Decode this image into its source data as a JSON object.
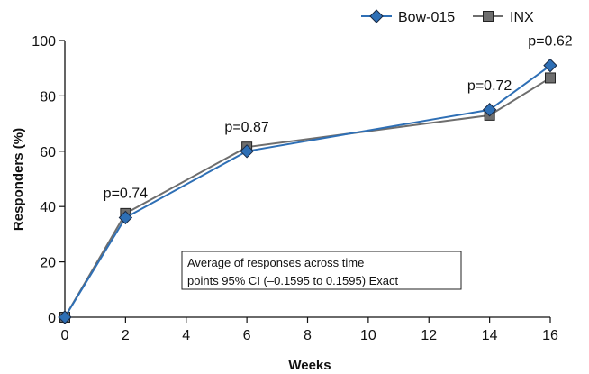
{
  "chart_data": {
    "type": "line",
    "xlabel": "Weeks",
    "ylabel": "Responders (%)",
    "xlim": [
      0,
      16
    ],
    "ylim": [
      0,
      100
    ],
    "xticks": [
      0,
      2,
      4,
      6,
      8,
      10,
      12,
      14,
      16
    ],
    "yticks": [
      0,
      20,
      40,
      60,
      80,
      100
    ],
    "grid": false,
    "legend_position": "top-right",
    "series": [
      {
        "name": "Bow-015",
        "color": "#2e6fb5",
        "marker": "diamond",
        "x": [
          0,
          2,
          6,
          14,
          16
        ],
        "y": [
          0,
          36,
          60,
          75,
          91
        ]
      },
      {
        "name": "INX",
        "color": "#6e6e6e",
        "marker": "square",
        "x": [
          0,
          2,
          6,
          14,
          16
        ],
        "y": [
          0,
          37.5,
          61.5,
          73,
          86.5
        ]
      }
    ],
    "annotations": [
      {
        "text": "p=0.74",
        "x": 2,
        "y": 36
      },
      {
        "text": "p=0.87",
        "x": 6,
        "y": 60
      },
      {
        "text": "p=0.72",
        "x": 14,
        "y": 75
      },
      {
        "text": "p=0.62",
        "x": 16,
        "y": 91
      }
    ],
    "note": {
      "line1": "Average of responses across time",
      "line2": "points 95% CI (–0.1595 to 0.1595) Exact"
    }
  }
}
